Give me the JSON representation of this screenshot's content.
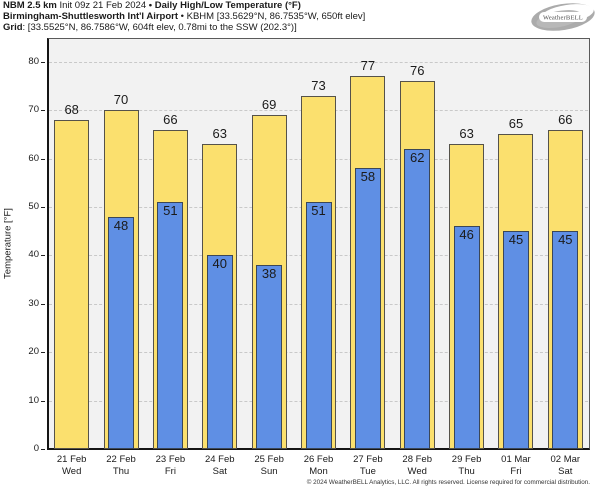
{
  "header": {
    "line1": {
      "model": "NBM 2.5 km",
      "init": "Init 09z 21 Feb 2024",
      "sep": "•",
      "title": "Daily High/Low Temperature (°F)"
    },
    "line2": {
      "station": "Birmingham-Shuttlesworth Int'l Airport",
      "sep": "•",
      "detail": "KBHM [33.5629°N, 86.7535°W, 650ft elev]"
    },
    "line3": {
      "label": "Grid",
      "detail": ": [33.5525°N, 86.7586°W, 604ft elev, 0.78mi to the SSW (202.3°)]"
    }
  },
  "logo": {
    "text": "WeatherBELL"
  },
  "chart_data": {
    "type": "bar",
    "title": "NBM 2.5 km Daily High/Low Temperature (°F) — Birmingham-Shuttlesworth Int'l Airport (KBHM)",
    "ylabel": "Temperature [°F]",
    "ylim": [
      0,
      84.7
    ],
    "yticks": [
      0,
      10,
      20,
      30,
      40,
      50,
      60,
      70,
      80
    ],
    "grid": "horizontal-dashed",
    "legend": "none",
    "categories": [
      {
        "date": "21 Feb",
        "day": "Wed"
      },
      {
        "date": "22 Feb",
        "day": "Thu"
      },
      {
        "date": "23 Feb",
        "day": "Fri"
      },
      {
        "date": "24 Feb",
        "day": "Sat"
      },
      {
        "date": "25 Feb",
        "day": "Sun"
      },
      {
        "date": "26 Feb",
        "day": "Mon"
      },
      {
        "date": "27 Feb",
        "day": "Tue"
      },
      {
        "date": "28 Feb",
        "day": "Wed"
      },
      {
        "date": "29 Feb",
        "day": "Thu"
      },
      {
        "date": "01 Mar",
        "day": "Fri"
      },
      {
        "date": "02 Mar",
        "day": "Sat"
      }
    ],
    "series": [
      {
        "name": "Daily High",
        "color": "#fbe06e",
        "values": [
          68,
          70,
          66,
          63,
          69,
          73,
          77,
          76,
          63,
          65,
          66
        ]
      },
      {
        "name": "Daily Low",
        "color": "#5f8fe4",
        "values": [
          null,
          48,
          51,
          40,
          38,
          51,
          58,
          62,
          46,
          45,
          45
        ]
      }
    ]
  },
  "footer": {
    "copyright": "© 2024 WeatherBELL Analytics, LLC. All rights reserved. License required for commercial distribution."
  },
  "colors": {
    "high_fill": "#fbe06e",
    "high_edge": "#55524a",
    "low_fill": "#5f8fe4",
    "low_edge": "#3b4757",
    "plot_bg": "#f2f2f2",
    "grid_line": "#c9c9c9",
    "axis": "#151515"
  }
}
